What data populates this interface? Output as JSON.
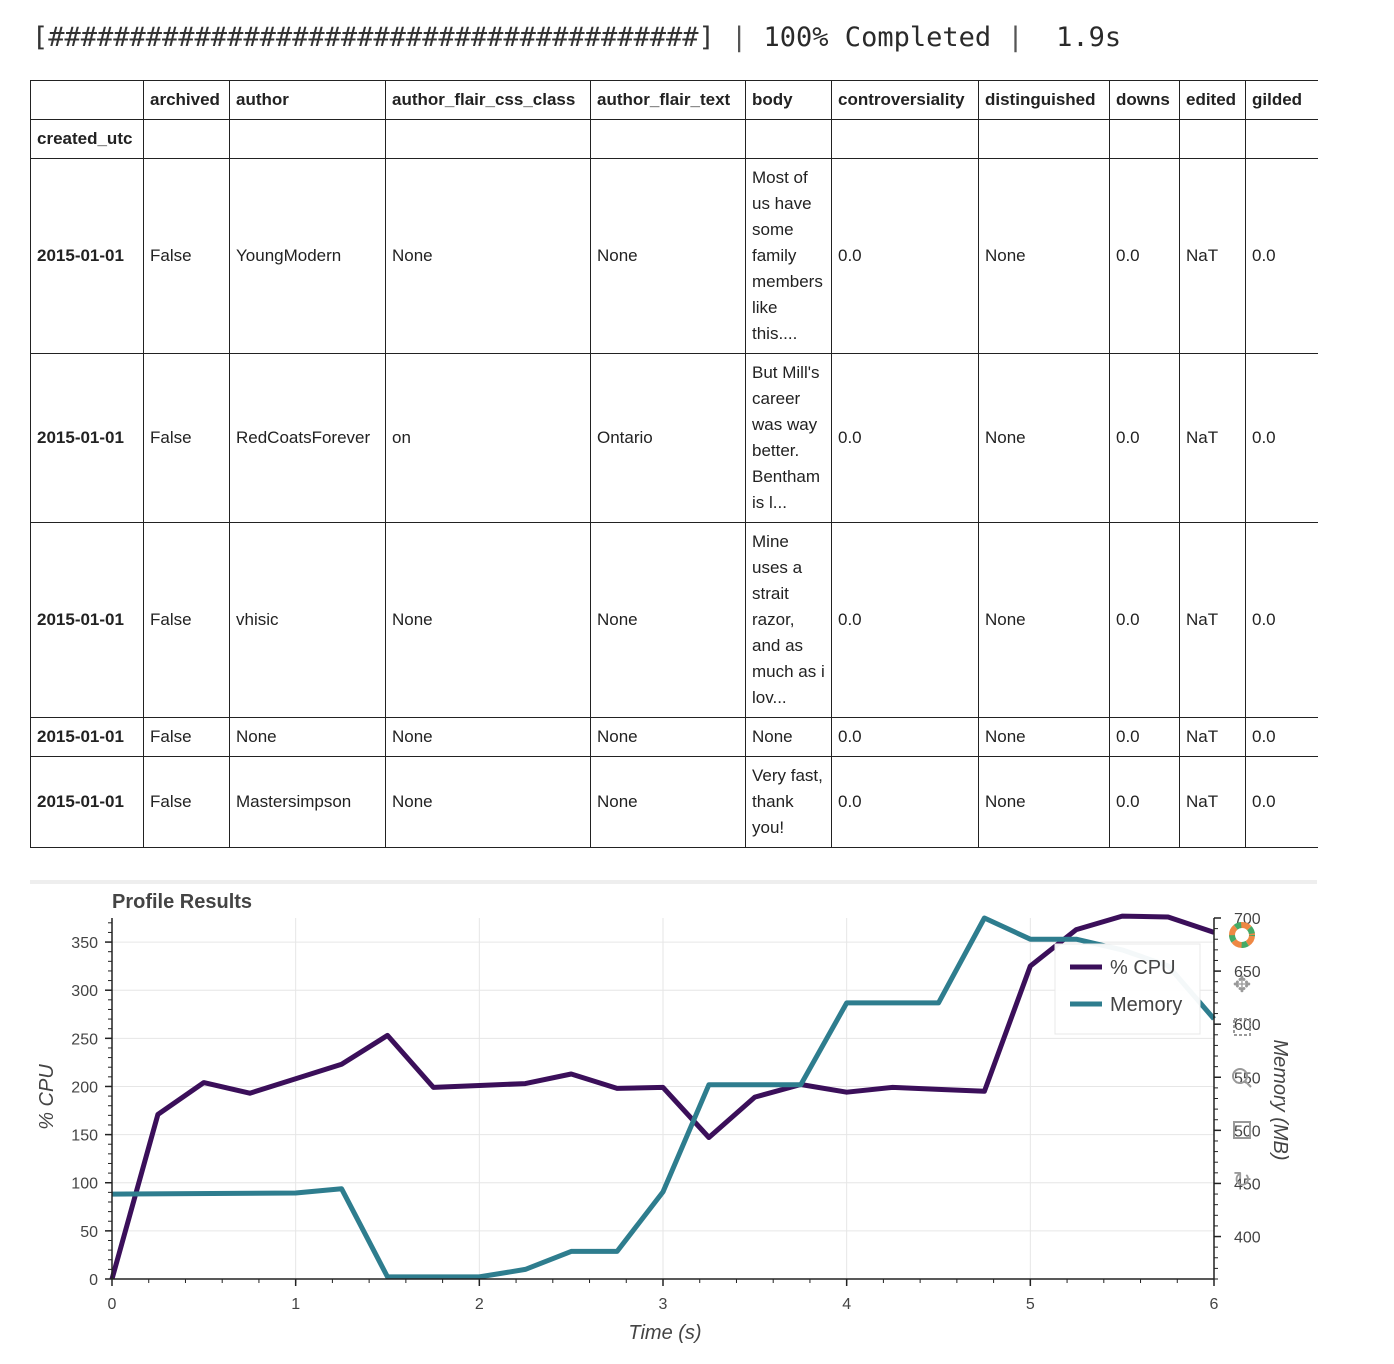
{
  "progress": {
    "bar": "[########################################]",
    "separator": "|",
    "percent_text": "100% Completed",
    "elapsed": "1.9s"
  },
  "table": {
    "columns": [
      "archived",
      "author",
      "author_flair_css_class",
      "author_flair_text",
      "body",
      "controversiality",
      "distinguished",
      "downs",
      "edited",
      "gilded"
    ],
    "index_name": "created_utc",
    "rows": [
      {
        "index": "2015-01-01",
        "cells": [
          "False",
          "YoungModern",
          "None",
          "None",
          "Most of us have some family members like this....",
          "0.0",
          "None",
          "0.0",
          "NaT",
          "0.0"
        ]
      },
      {
        "index": "2015-01-01",
        "cells": [
          "False",
          "RedCoatsForever",
          "on",
          "Ontario",
          "But Mill's career was way better. Bentham is l...",
          "0.0",
          "None",
          "0.0",
          "NaT",
          "0.0"
        ]
      },
      {
        "index": "2015-01-01",
        "cells": [
          "False",
          "vhisic",
          "None",
          "None",
          "Mine uses a strait razor, and as much as i lov...",
          "0.0",
          "None",
          "0.0",
          "NaT",
          "0.0"
        ]
      },
      {
        "index": "2015-01-01",
        "cells": [
          "False",
          "None",
          "None",
          "None",
          "None",
          "0.0",
          "None",
          "0.0",
          "NaT",
          "0.0"
        ]
      },
      {
        "index": "2015-01-01",
        "cells": [
          "False",
          "Mastersimpson",
          "None",
          "None",
          "Very fast, thank you!",
          "0.0",
          "None",
          "0.0",
          "NaT",
          "0.0"
        ]
      }
    ]
  },
  "chart_data": {
    "type": "line",
    "title": "Profile Results",
    "xlabel": "Time (s)",
    "ylabel": "% CPU",
    "y2label": "Memory (MB)",
    "xlim": [
      0,
      6
    ],
    "ylim": [
      0,
      375
    ],
    "y2lim": [
      360,
      700
    ],
    "x_ticks": [
      0,
      1,
      2,
      3,
      4,
      5,
      6
    ],
    "y_ticks": [
      0,
      50,
      100,
      150,
      200,
      250,
      300,
      350
    ],
    "y2_ticks": [
      400,
      450,
      500,
      550,
      600,
      650,
      700
    ],
    "legend_position": "top-right",
    "grid": true,
    "series": [
      {
        "name": "% CPU",
        "color": "#3b0f5a",
        "axis": "left",
        "x": [
          0,
          0.25,
          0.5,
          0.75,
          1.0,
          1.25,
          1.5,
          1.75,
          2.0,
          2.25,
          2.5,
          2.75,
          3.0,
          3.25,
          3.5,
          3.75,
          4.0,
          4.25,
          4.5,
          4.75,
          5.0,
          5.25,
          5.5,
          5.75,
          6.0
        ],
        "y": [
          0,
          171,
          204,
          193,
          208,
          223,
          253,
          199,
          201,
          203,
          213,
          198,
          199,
          147,
          189,
          202,
          194,
          199,
          197,
          195,
          325,
          363,
          377,
          376,
          360
        ]
      },
      {
        "name": "Memory",
        "color": "#2e7d8e",
        "axis": "right",
        "x": [
          0,
          1.0,
          1.25,
          1.5,
          2.0,
          2.25,
          2.5,
          2.75,
          3.0,
          3.25,
          3.5,
          3.75,
          4.0,
          4.25,
          4.5,
          4.75,
          5.0,
          5.25,
          5.5,
          5.75,
          6.0
        ],
        "y": [
          440,
          441,
          445,
          362,
          362,
          369,
          386,
          386,
          442,
          543,
          543,
          543,
          620,
          620,
          620,
          700,
          680,
          680,
          670,
          655,
          605
        ]
      }
    ]
  },
  "toolbar": {
    "icons": [
      "bokeh-logo-icon",
      "pan-icon",
      "box-zoom-icon",
      "wheel-zoom-icon",
      "box-select-icon",
      "reset-icon"
    ]
  }
}
